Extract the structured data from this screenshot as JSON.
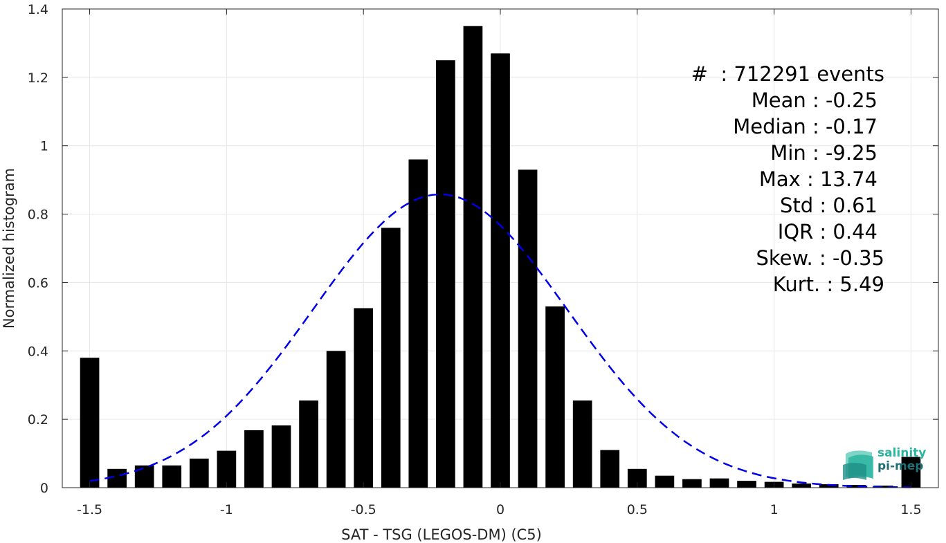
{
  "chart_data": {
    "type": "bar",
    "xlabel": "SAT - TSG (LEGOS-DM) (C5)",
    "ylabel": "Normalized histogram",
    "xlim": [
      -1.6,
      1.6
    ],
    "ylim": [
      0,
      1.4
    ],
    "xticks": [
      "-1.5",
      "-1",
      "-0.5",
      "0",
      "0.5",
      "1",
      "1.5"
    ],
    "xtick_values": [
      -1.5,
      -1,
      -0.5,
      0,
      0.5,
      1,
      1.5
    ],
    "yticks": [
      "0",
      "0.2",
      "0.4",
      "0.6",
      "0.8",
      "1",
      "1.2",
      "1.4"
    ],
    "ytick_values": [
      0,
      0.2,
      0.4,
      0.6,
      0.8,
      1.0,
      1.2,
      1.4
    ],
    "grid": true,
    "bar_color": "#000000",
    "bars": [
      {
        "x": -1.5,
        "y": 0.38
      },
      {
        "x": -1.4,
        "y": 0.055
      },
      {
        "x": -1.3,
        "y": 0.065
      },
      {
        "x": -1.2,
        "y": 0.065
      },
      {
        "x": -1.1,
        "y": 0.085
      },
      {
        "x": -1.0,
        "y": 0.108
      },
      {
        "x": -0.9,
        "y": 0.168
      },
      {
        "x": -0.8,
        "y": 0.182
      },
      {
        "x": -0.7,
        "y": 0.255
      },
      {
        "x": -0.6,
        "y": 0.4
      },
      {
        "x": -0.5,
        "y": 0.525
      },
      {
        "x": -0.4,
        "y": 0.76
      },
      {
        "x": -0.3,
        "y": 0.96
      },
      {
        "x": -0.2,
        "y": 1.25
      },
      {
        "x": -0.1,
        "y": 1.35
      },
      {
        "x": 0.0,
        "y": 1.27
      },
      {
        "x": 0.1,
        "y": 0.93
      },
      {
        "x": 0.2,
        "y": 0.53
      },
      {
        "x": 0.3,
        "y": 0.255
      },
      {
        "x": 0.4,
        "y": 0.11
      },
      {
        "x": 0.5,
        "y": 0.055
      },
      {
        "x": 0.6,
        "y": 0.035
      },
      {
        "x": 0.7,
        "y": 0.025
      },
      {
        "x": 0.8,
        "y": 0.027
      },
      {
        "x": 0.9,
        "y": 0.02
      },
      {
        "x": 1.0,
        "y": 0.017
      },
      {
        "x": 1.1,
        "y": 0.012
      },
      {
        "x": 1.2,
        "y": 0.01
      },
      {
        "x": 1.3,
        "y": 0.008
      },
      {
        "x": 1.4,
        "y": 0.006
      },
      {
        "x": 1.5,
        "y": 0.09
      }
    ],
    "fit_curve": {
      "style": "dashed",
      "color": "#0000e6",
      "mean": -0.22,
      "std": 0.465,
      "x_range": [
        -1.5,
        1.5
      ]
    },
    "stats_lines": [
      "#  : 712291 events",
      "Mean : -0.25",
      "Median : -0.17",
      "Min : -9.25",
      "Max : 13.74",
      "Std : 0.61",
      "IQR : 0.44",
      "Skew. : -0.35",
      "Kurt. : 5.49"
    ]
  },
  "logo": {
    "line1": "salinity",
    "line2": "pi-mep",
    "color1": "#2bb5a0",
    "color2": "#1f6f74"
  }
}
